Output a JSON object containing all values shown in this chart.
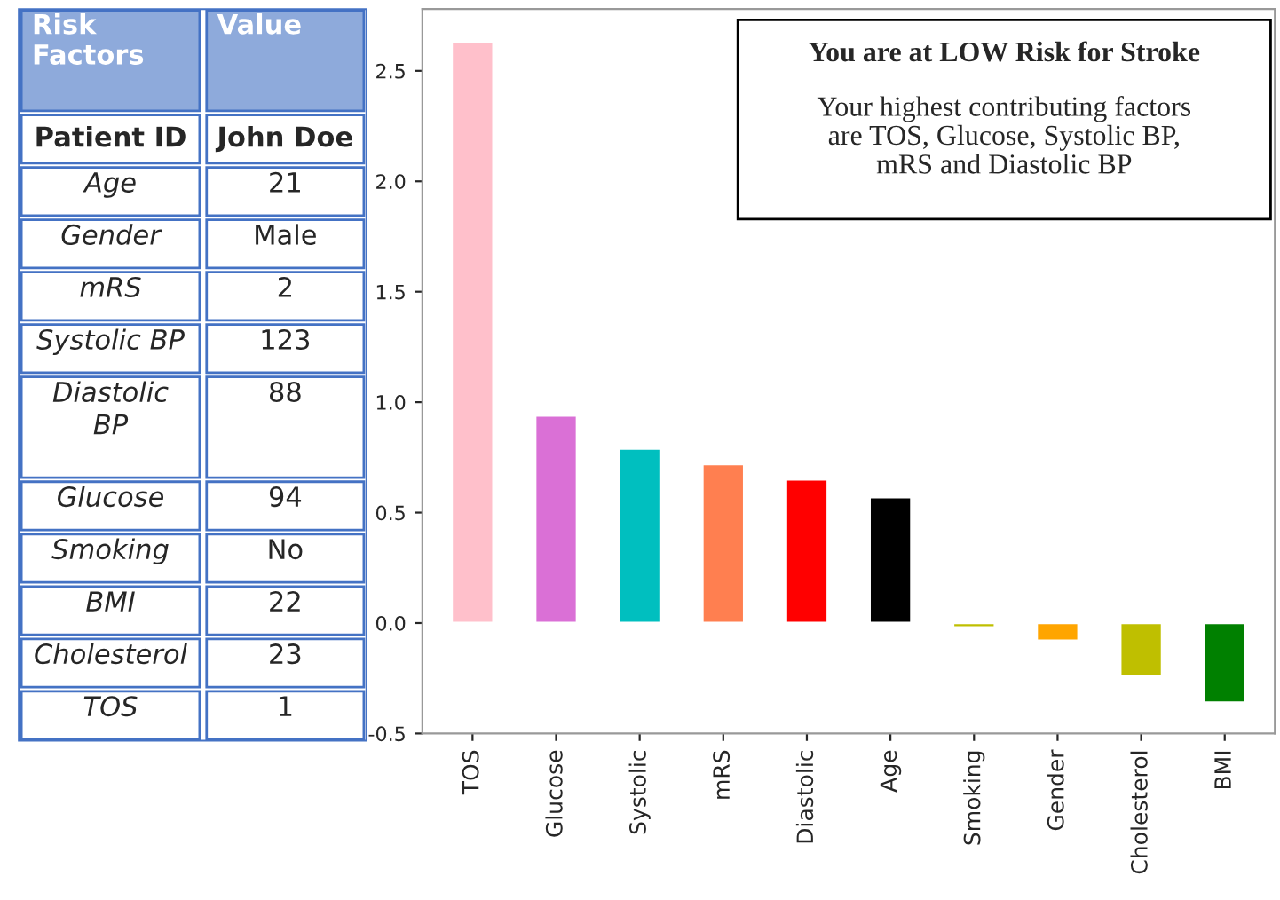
{
  "chart_data": [
    {
      "type": "other",
      "annotations": [
        "Risk\nFactors",
        "Value",
        "Patient ID",
        "John Doe",
        "Age",
        "21",
        "Gender",
        "Male",
        "mRS",
        "2",
        "Systolic BP",
        "123",
        "Diastolic\nBP",
        "88",
        "Glucose",
        "94",
        "Smoking",
        "No",
        "BMI",
        "22",
        "Cholesterol",
        "23",
        "TOS",
        "1"
      ]
    },
    {
      "type": "bar",
      "categories": [
        "TOS",
        "Glucose",
        "Systolic",
        "mRS",
        "Diastolic",
        "Age",
        "Smoking",
        "Gender",
        "Cholesterol",
        "BMI"
      ],
      "values": [
        2.63,
        0.94,
        0.79,
        0.72,
        0.65,
        0.57,
        -0.02,
        -0.08,
        -0.24,
        -0.36
      ],
      "colors": [
        "#ffc0cb",
        "#da70d6",
        "#00bfbf",
        "#ff7f50",
        "#ff0000",
        "#000000",
        "#bfbf00",
        "#ffa500",
        "#bfbf00",
        "#008000"
      ],
      "ylim": [
        -0.5,
        2.78
      ],
      "yticks": [
        {
          "value": -0.5,
          "label": "-0.5"
        },
        {
          "value": 0,
          "label": "0.0"
        },
        {
          "value": 0.5,
          "label": "0.5"
        },
        {
          "value": 1,
          "label": "1.0"
        },
        {
          "value": 1.5,
          "label": "1.5"
        },
        {
          "value": 2,
          "label": "2.0"
        },
        {
          "value": 2.5,
          "label": "2.5"
        }
      ],
      "grid": false,
      "annotations": [
        "You are at LOW Risk for Stroke",
        "Your highest contributing factors\nare TOS, Glucose, Systolic BP,\nmRS and Diastolic BP"
      ]
    }
  ]
}
